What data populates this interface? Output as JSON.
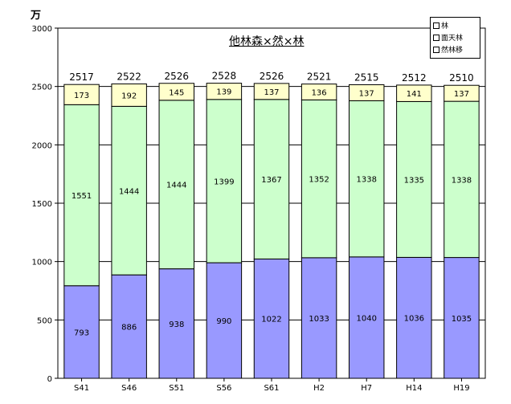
{
  "unit_label": "万",
  "chart_data": {
    "type": "bar",
    "stacked": true,
    "title": "他林森×然×林",
    "categories": [
      "S41",
      "S46",
      "S51",
      "S56",
      "S61",
      "H2",
      "H7",
      "H14",
      "H19"
    ],
    "series": [
      {
        "name": "然林移",
        "color": "#9999ff",
        "values": [
          793,
          886,
          938,
          990,
          1022,
          1033,
          1040,
          1036,
          1035
        ]
      },
      {
        "name": "面天林",
        "color": "#ccffcc",
        "values": [
          1551,
          1444,
          1444,
          1399,
          1367,
          1352,
          1338,
          1335,
          1338
        ]
      },
      {
        "name": "林",
        "color": "#ffffcc",
        "values": [
          173,
          192,
          145,
          139,
          137,
          136,
          137,
          141,
          137
        ]
      }
    ],
    "totals": [
      2517,
      2522,
      2526,
      2528,
      2526,
      2521,
      2515,
      2512,
      2510
    ],
    "ylim": [
      0,
      3000
    ],
    "yticks": [
      0,
      500,
      1000,
      1500,
      2000,
      2500,
      3000
    ],
    "grid": true,
    "legend_position": "top-right",
    "legend": [
      "林",
      "面天林",
      "然林移"
    ]
  }
}
